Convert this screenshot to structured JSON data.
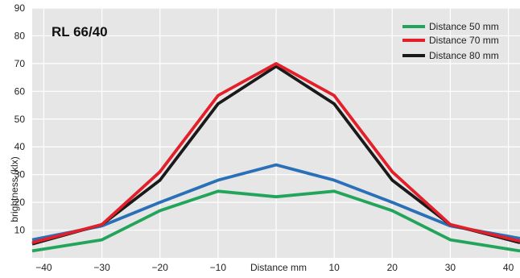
{
  "chart_data": {
    "type": "line",
    "title": "RL 66/40",
    "xlabel": "Distance mm",
    "ylabel": "brightness (klx)",
    "xlim": [
      -42,
      42
    ],
    "ylim": [
      0,
      90
    ],
    "x_ticks": [
      -40,
      -30,
      -20,
      -10,
      10,
      20,
      30,
      40
    ],
    "y_ticks": [
      10,
      20,
      30,
      40,
      50,
      60,
      70,
      80,
      90
    ],
    "grid": "horizontal",
    "legend_position": "top-right",
    "legend": [
      {
        "label": "Distance 50 mm",
        "color": "#22a55a"
      },
      {
        "label": "Distance 70 mm",
        "color": "#e3202a"
      },
      {
        "label": "Distance 80 mm",
        "color": "#1a1a1a"
      }
    ],
    "series": [
      {
        "color": "#22a55a",
        "x": [
          -42,
          -30,
          -20,
          -10,
          0,
          10,
          20,
          30,
          42
        ],
        "y": [
          2.5,
          6.5,
          17,
          24,
          22,
          24,
          17,
          6.5,
          2.5
        ]
      },
      {
        "color": "#2a70b8",
        "x": [
          -42,
          -30,
          -20,
          -10,
          0,
          10,
          20,
          30,
          42
        ],
        "y": [
          6.5,
          11.5,
          20,
          28,
          33.5,
          28,
          20,
          11.5,
          7
        ]
      },
      {
        "color": "#1a1a1a",
        "x": [
          -42,
          -30,
          -20,
          -10,
          0,
          10,
          20,
          30,
          42
        ],
        "y": [
          5,
          12,
          28,
          55.5,
          69,
          55.5,
          28,
          12,
          5.5
        ]
      },
      {
        "color": "#e3202a",
        "x": [
          -42,
          -30,
          -20,
          -10,
          0,
          10,
          20,
          30,
          42
        ],
        "y": [
          5.5,
          12,
          31,
          58.5,
          70,
          58.5,
          31,
          12,
          6
        ]
      }
    ]
  }
}
